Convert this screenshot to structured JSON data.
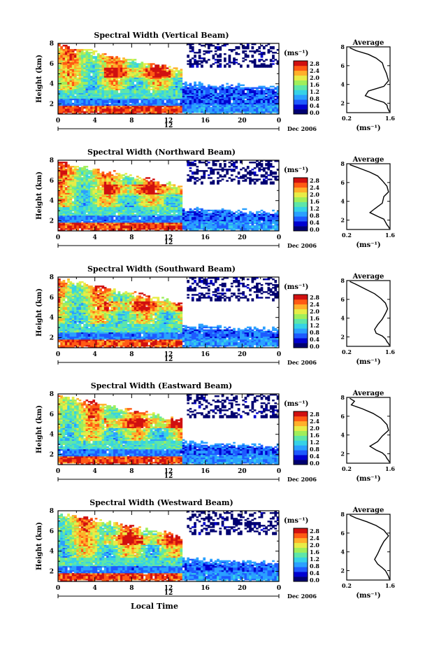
{
  "figure": {
    "xlabel": "Local Time",
    "date_label": "Dec 2006",
    "colorbar_unit": "(ms⁻¹)",
    "colorbar_ticks": [
      "2.8",
      "2.4",
      "2.0",
      "1.6",
      "1.2",
      "0.8",
      "0.4",
      "0.0"
    ],
    "colormap": [
      "#000070",
      "#0000d0",
      "#1e5aff",
      "#2aa0ff",
      "#36d2e6",
      "#5ee6a8",
      "#a0ee5a",
      "#e8ec46",
      "#ffb02a",
      "#ff5a14",
      "#d01010"
    ],
    "avg_title": "Average",
    "avg_xlabel": "(ms⁻¹)"
  },
  "chart_data": [
    {
      "type": "heatmap",
      "title": "Spectral Width (Vertical Beam)",
      "ylabel": "Height (km)",
      "xlabel": "",
      "x_ticks": [
        "0",
        "4",
        "8",
        "12",
        "16",
        "20",
        "0"
      ],
      "x_day_label": "12",
      "y_ticks": [
        "8",
        "6",
        "4",
        "2"
      ],
      "xlim": [
        0,
        24
      ],
      "ylim": [
        1,
        8
      ],
      "profile": {
        "title": "Average",
        "xlim": [
          0.2,
          1.6
        ],
        "x_ticks": [
          "0.2",
          "1.6"
        ],
        "ylim": [
          1,
          8
        ],
        "y_ticks": [
          "8",
          "6",
          "4",
          "2"
        ],
        "x": [
          0.3,
          0.5,
          0.9,
          1.15,
          1.35,
          1.4,
          1.48,
          1.55,
          1.4,
          0.9,
          0.8,
          1.1,
          1.4,
          1.5,
          1.52,
          1.55,
          1.58
        ],
        "y": [
          7.9,
          7.6,
          7.2,
          6.8,
          6.3,
          5.8,
          5.2,
          4.4,
          3.8,
          3.3,
          2.8,
          2.4,
          2.1,
          1.8,
          1.5,
          1.3,
          1.1
        ]
      }
    },
    {
      "type": "heatmap",
      "title": "Spectral Width (Northward Beam)",
      "ylabel": "Height (km)",
      "xlabel": "",
      "x_ticks": [
        "0",
        "4",
        "8",
        "12",
        "16",
        "20",
        "0"
      ],
      "x_day_label": "12",
      "y_ticks": [
        "8",
        "6",
        "4",
        "2"
      ],
      "xlim": [
        0,
        24
      ],
      "ylim": [
        1,
        8
      ],
      "profile": {
        "title": "Average",
        "xlim": [
          0.2,
          1.6
        ],
        "x_ticks": [
          "0.2",
          "1.6"
        ],
        "ylim": [
          1,
          8
        ],
        "y_ticks": [
          "8",
          "6",
          "4",
          "2"
        ],
        "x": [
          0.3,
          0.55,
          0.95,
          1.2,
          1.35,
          1.5,
          1.55,
          1.4,
          1.35,
          1.1,
          0.95,
          1.2,
          1.4,
          1.45,
          1.5,
          1.55,
          1.58
        ],
        "y": [
          7.9,
          7.6,
          7.1,
          6.7,
          6.2,
          5.6,
          5.0,
          4.5,
          3.8,
          3.2,
          2.8,
          2.4,
          2.1,
          1.8,
          1.5,
          1.3,
          1.1
        ]
      }
    },
    {
      "type": "heatmap",
      "title": "Spectral Width (Southward Beam)",
      "ylabel": "Height (km)",
      "xlabel": "",
      "x_ticks": [
        "0",
        "4",
        "8",
        "12",
        "16",
        "20",
        "0"
      ],
      "x_day_label": "12",
      "y_ticks": [
        "8",
        "6",
        "4",
        "2"
      ],
      "xlim": [
        0,
        24
      ],
      "ylim": [
        1,
        8
      ],
      "profile": {
        "title": "Average",
        "xlim": [
          0.2,
          1.6
        ],
        "x_ticks": [
          "0.2",
          "1.6"
        ],
        "ylim": [
          1,
          8
        ],
        "y_ticks": [
          "8",
          "6",
          "4",
          "2"
        ],
        "x": [
          0.3,
          0.5,
          0.8,
          1.1,
          1.3,
          1.45,
          1.52,
          1.45,
          1.35,
          1.2,
          1.1,
          1.15,
          1.35,
          1.45,
          1.5,
          1.55,
          1.58
        ],
        "y": [
          7.9,
          7.6,
          7.1,
          6.6,
          6.1,
          5.6,
          5.0,
          4.5,
          3.9,
          3.3,
          2.8,
          2.4,
          2.1,
          1.8,
          1.5,
          1.3,
          1.1
        ]
      }
    },
    {
      "type": "heatmap",
      "title": "Spectral Width (Eastward Beam)",
      "ylabel": "Height (km)",
      "xlabel": "",
      "x_ticks": [
        "0",
        "4",
        "8",
        "12",
        "16",
        "20",
        "0"
      ],
      "x_day_label": "12",
      "y_ticks": [
        "8",
        "6",
        "4",
        "2"
      ],
      "xlim": [
        0,
        24
      ],
      "ylim": [
        1,
        8
      ],
      "profile": {
        "title": "Average",
        "xlim": [
          0.2,
          1.6
        ],
        "x_ticks": [
          "0.2",
          "1.6"
        ],
        "ylim": [
          1,
          8
        ],
        "y_ticks": [
          "8",
          "6",
          "4",
          "2"
        ],
        "x": [
          0.3,
          0.45,
          0.35,
          0.7,
          1.05,
          1.3,
          1.5,
          1.55,
          1.35,
          1.2,
          0.95,
          1.15,
          1.35,
          1.45,
          1.5,
          1.55,
          1.58
        ],
        "y": [
          7.9,
          7.6,
          7.2,
          6.8,
          6.3,
          5.8,
          5.1,
          4.5,
          3.9,
          3.3,
          2.8,
          2.4,
          2.1,
          1.8,
          1.5,
          1.3,
          1.1
        ]
      }
    },
    {
      "type": "heatmap",
      "title": "Spectral Width (Westward Beam)",
      "ylabel": "Height (km)",
      "xlabel": "Local Time",
      "x_ticks": [
        "0",
        "4",
        "8",
        "12",
        "16",
        "20",
        "0"
      ],
      "x_day_label": "12",
      "y_ticks": [
        "8",
        "6",
        "4",
        "2"
      ],
      "xlim": [
        0,
        24
      ],
      "ylim": [
        1,
        8
      ],
      "profile": {
        "title": "Average",
        "xlim": [
          0.2,
          1.6
        ],
        "x_ticks": [
          "0.2",
          "1.6"
        ],
        "ylim": [
          1,
          8
        ],
        "y_ticks": [
          "8",
          "6",
          "4",
          "2"
        ],
        "x": [
          0.3,
          0.5,
          0.85,
          1.15,
          1.4,
          1.55,
          1.4,
          1.3,
          1.2,
          1.1,
          1.2,
          1.35,
          1.45,
          1.5,
          1.55,
          1.58
        ],
        "y": [
          7.9,
          7.6,
          7.2,
          6.8,
          6.3,
          5.7,
          5.1,
          4.5,
          3.8,
          3.2,
          2.7,
          2.3,
          2.0,
          1.7,
          1.4,
          1.1
        ]
      }
    }
  ]
}
